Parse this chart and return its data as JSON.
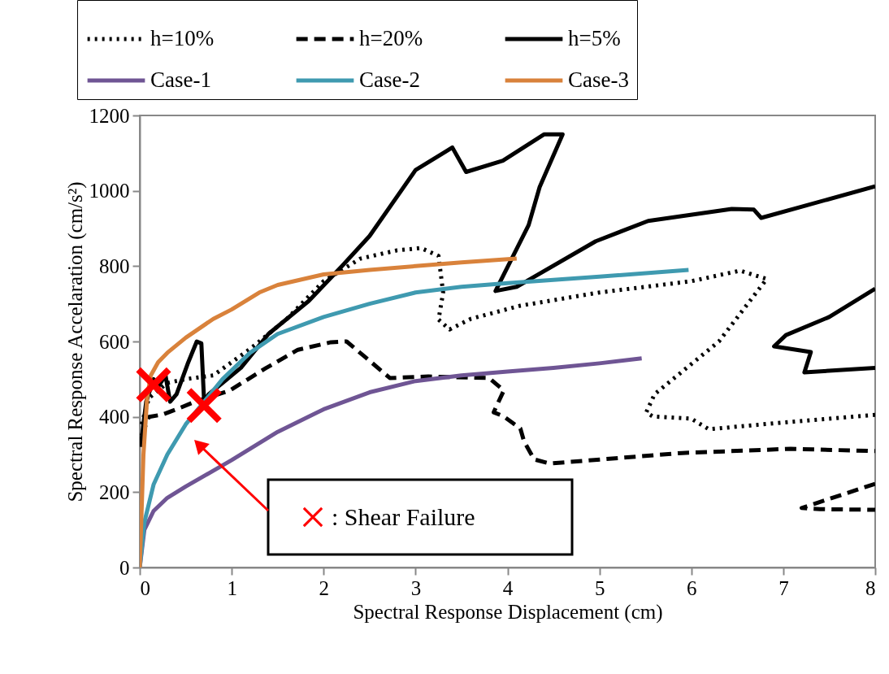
{
  "chart_data": {
    "type": "line",
    "xlabel": "Spectral Response Displacement (cm)",
    "ylabel": "Spectral Response Accelaration (cm/s²)",
    "xlim": [
      0,
      8
    ],
    "xticks": [
      0,
      1,
      2,
      3,
      4,
      5,
      6,
      7,
      8
    ],
    "ylim": [
      0,
      1200
    ],
    "yticks": [
      0,
      200,
      400,
      600,
      800,
      1000,
      1200
    ],
    "legend": "top",
    "annotations": [
      ": Shear Failure"
    ],
    "series": [
      {
        "name": "h=10%",
        "color": "#000000",
        "line_style": "dotted",
        "x": [
          0.02,
          0.1,
          0.3,
          0.5,
          0.8,
          1.2,
          1.6,
          2.0,
          2.4,
          2.8,
          3.06,
          3.25,
          3.3,
          3.25,
          3.37,
          3.6,
          4.14,
          5.0,
          6.0,
          6.53,
          6.82,
          6.3,
          5.6,
          5.51,
          5.58,
          6.0,
          6.19,
          7.0,
          8.0
        ],
        "values": [
          380,
          450,
          490,
          500,
          510,
          580,
          660,
          760,
          820,
          842,
          848,
          827,
          730,
          658,
          632,
          660,
          695,
          730,
          760,
          788,
          766,
          600,
          460,
          412,
          401,
          395,
          367,
          385,
          405
        ]
      },
      {
        "name": "h=20%",
        "color": "#000000",
        "line_style": "dashed",
        "x": [
          0.02,
          0.1,
          0.25,
          0.4,
          0.6,
          0.98,
          1.37,
          1.72,
          2.08,
          2.25,
          2.46,
          2.72,
          3.14,
          3.8,
          3.96,
          3.85,
          3.96,
          4.14,
          4.18,
          4.29,
          4.46,
          5.9,
          7.08,
          8.0,
          null,
          8.0,
          7.2,
          7.4,
          8.0
        ],
        "values": [
          350,
          400,
          406,
          420,
          440,
          470,
          529,
          578,
          598,
          600,
          557,
          503,
          507,
          503,
          470,
          412,
          401,
          369,
          335,
          287,
          276,
          304,
          315,
          309,
          null,
          222,
          158,
          155,
          153
        ]
      },
      {
        "name": "h=5%",
        "color": "#000000",
        "line_style": "solid",
        "x": [
          0.01,
          0.07,
          0.15,
          0.2,
          0.28,
          0.33,
          0.4,
          0.52,
          0.62,
          0.67,
          0.7,
          0.75,
          0.9,
          1.1,
          1.4,
          1.84,
          2.2,
          2.5,
          3.0,
          3.3,
          3.4,
          3.55,
          3.95,
          4.4,
          4.6,
          4.35,
          4.23,
          3.87,
          4.1,
          4.96,
          5.53,
          6.44,
          6.68,
          6.76,
          8.0,
          null,
          8.0,
          7.5,
          7.03,
          6.9,
          7.3,
          7.23,
          8.0
        ],
        "values": [
          320,
          440,
          500,
          480,
          510,
          440,
          460,
          540,
          600,
          595,
          440,
          460,
          490,
          530,
          620,
          708,
          800,
          880,
          1055,
          1100,
          1115,
          1050,
          1080,
          1150,
          1150,
          1010,
          909,
          734,
          745,
          866,
          920,
          952,
          950,
          928,
          1012,
          null,
          740,
          665,
          617,
          587,
          572,
          518,
          530
        ]
      },
      {
        "name": "Case-1",
        "color": "#6f5594",
        "line_style": "solid",
        "x": [
          0,
          0.05,
          0.15,
          0.3,
          0.5,
          1.0,
          1.5,
          2.0,
          2.5,
          3.0,
          3.5,
          4.0,
          4.5,
          5.0,
          5.46
        ],
        "values": [
          0,
          100,
          150,
          185,
          215,
          285,
          360,
          420,
          465,
          495,
          510,
          520,
          530,
          542,
          555
        ]
      },
      {
        "name": "Case-2",
        "color": "#3f9ab0",
        "line_style": "solid",
        "x": [
          0,
          0.05,
          0.15,
          0.3,
          0.5,
          0.7,
          0.9,
          1.2,
          1.5,
          2.0,
          2.5,
          3.0,
          3.5,
          4.0,
          5.0,
          5.97
        ],
        "values": [
          0,
          120,
          220,
          300,
          380,
          440,
          500,
          570,
          620,
          665,
          700,
          730,
          745,
          755,
          772,
          790
        ]
      },
      {
        "name": "Case-3",
        "color": "#d9823b",
        "line_style": "solid",
        "x": [
          0,
          0.04,
          0.08,
          0.12,
          0.2,
          0.3,
          0.5,
          0.8,
          1.0,
          1.3,
          1.5,
          2.0,
          2.5,
          3.0,
          3.5,
          4.1
        ],
        "values": [
          0,
          300,
          450,
          510,
          545,
          570,
          610,
          660,
          685,
          730,
          750,
          778,
          790,
          800,
          810,
          820
        ]
      },
      {
        "type": "scatter",
        "color": "#ff0000",
        "marker": "cross",
        "x": [
          0.15,
          0.7
        ],
        "values": [
          485,
          430
        ]
      }
    ]
  }
}
